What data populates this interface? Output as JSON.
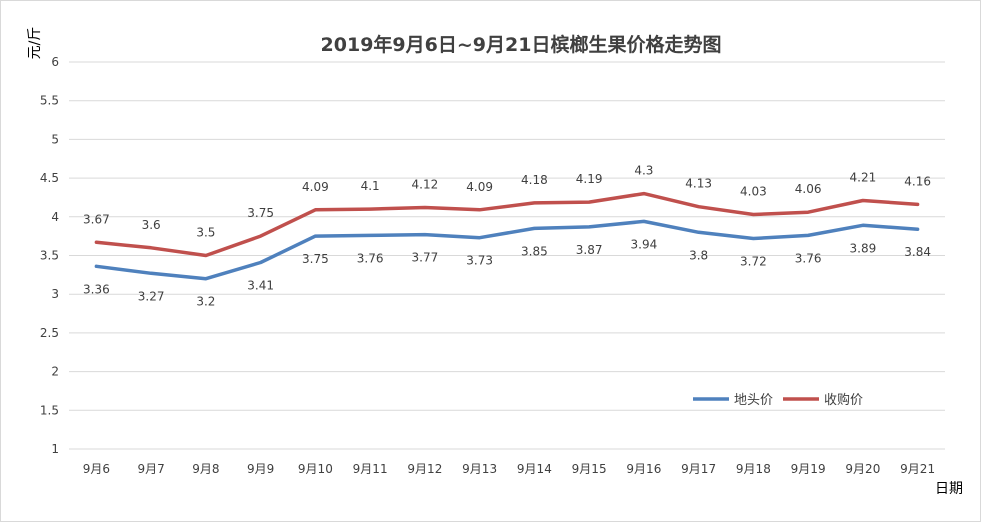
{
  "chart_data": {
    "type": "line",
    "title": "2019年9月6日~9月21日槟榔生果价格走势图",
    "xlabel": "日期",
    "ylabel": "元/斤",
    "categories": [
      "9月6",
      "9月7",
      "9月8",
      "9月9",
      "9月10",
      "9月11",
      "9月12",
      "9月13",
      "9月14",
      "9月15",
      "9月16",
      "9月17",
      "9月18",
      "9月19",
      "9月20",
      "9月21"
    ],
    "series": [
      {
        "name": "地头价",
        "color": "#4f81bd",
        "values": [
          3.36,
          3.27,
          3.2,
          3.41,
          3.75,
          3.76,
          3.77,
          3.73,
          3.85,
          3.87,
          3.94,
          3.8,
          3.72,
          3.76,
          3.89,
          3.84
        ],
        "labels": [
          "3.36",
          "3.27",
          "3.2",
          "3.41",
          "3.75",
          "3.76",
          "3.77",
          "3.73",
          "3.85",
          "3.87",
          "3.94",
          "3.8",
          "3.72",
          "3.76",
          "3.89",
          "3.84"
        ],
        "label_position": "below"
      },
      {
        "name": "收购价",
        "color": "#c0504d",
        "values": [
          3.67,
          3.6,
          3.5,
          3.75,
          4.09,
          4.1,
          4.12,
          4.09,
          4.18,
          4.19,
          4.3,
          4.13,
          4.03,
          4.06,
          4.21,
          4.16
        ],
        "labels": [
          "3.67",
          "3.6",
          "3.5",
          "3.75",
          "4.09",
          "4.1",
          "4.12",
          "4.09",
          "4.18",
          "4.19",
          "4.3",
          "4.13",
          "4.03",
          "4.06",
          "4.21",
          "4.16"
        ],
        "label_position": "above"
      }
    ],
    "ylim": [
      1,
      6
    ],
    "yticks": [
      "1",
      "1.5",
      "2",
      "2.5",
      "3",
      "3.5",
      "4",
      "4.5",
      "5",
      "5.5",
      "6"
    ],
    "grid": true,
    "legend_position": "bottom-right"
  }
}
